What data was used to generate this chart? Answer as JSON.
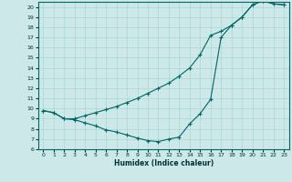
{
  "xlabel": "Humidex (Indice chaleur)",
  "bg_color": "#cce8e8",
  "line_color": "#006666",
  "grid_color": "#aad4d4",
  "xlim": [
    -0.5,
    23.5
  ],
  "ylim": [
    6,
    20.5
  ],
  "xticks": [
    0,
    1,
    2,
    3,
    4,
    5,
    6,
    7,
    8,
    9,
    10,
    11,
    12,
    13,
    14,
    15,
    16,
    17,
    18,
    19,
    20,
    21,
    22,
    23
  ],
  "yticks": [
    6,
    7,
    8,
    9,
    10,
    11,
    12,
    13,
    14,
    15,
    16,
    17,
    18,
    19,
    20
  ],
  "curve_bottom_x": [
    0,
    1,
    2,
    3,
    4,
    5,
    6,
    7,
    8,
    9,
    10,
    11,
    12,
    13,
    14,
    15,
    16,
    17,
    18,
    19,
    20,
    21,
    22,
    23
  ],
  "curve_bottom_y": [
    9.8,
    9.6,
    9.0,
    8.9,
    8.6,
    8.3,
    7.9,
    7.7,
    7.4,
    7.1,
    6.85,
    6.75,
    7.0,
    7.2,
    8.5,
    9.5,
    10.9,
    17.0,
    18.2,
    19.0,
    20.2,
    20.6,
    20.3,
    20.2
  ],
  "curve_top_x": [
    0,
    1,
    2,
    3,
    4,
    5,
    6,
    7,
    8,
    9,
    10,
    11,
    12,
    13,
    14,
    15,
    16,
    17,
    18,
    19,
    20,
    21,
    22,
    23
  ],
  "curve_top_y": [
    9.8,
    9.6,
    9.0,
    9.0,
    9.3,
    9.6,
    9.9,
    10.2,
    10.6,
    11.0,
    11.5,
    12.0,
    12.5,
    13.2,
    14.0,
    15.3,
    17.2,
    17.6,
    18.2,
    19.0,
    20.2,
    20.6,
    20.3,
    20.2
  ]
}
